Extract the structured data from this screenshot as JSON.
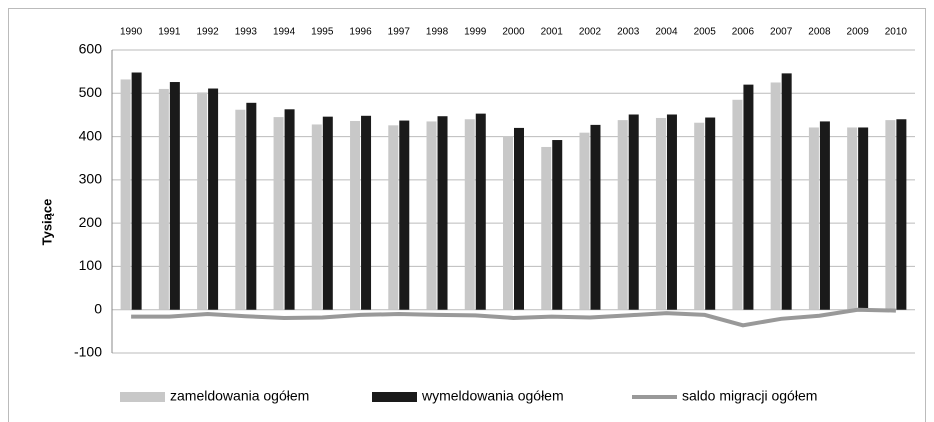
{
  "chart_data": {
    "type": "bar",
    "y_label": "Tysiące",
    "categories": [
      "1990",
      "1991",
      "1992",
      "1993",
      "1994",
      "1995",
      "1996",
      "1997",
      "1998",
      "1999",
      "2000",
      "2001",
      "2002",
      "2003",
      "2004",
      "2005",
      "2006",
      "2007",
      "2008",
      "2009",
      "2010"
    ],
    "series": [
      {
        "name": "zameldowania ogółem",
        "color": "#c8c8c8",
        "values": [
          532,
          510,
          502,
          462,
          445,
          428,
          436,
          426,
          435,
          440,
          401,
          376,
          409,
          438,
          443,
          432,
          485,
          525,
          421,
          421,
          438
        ]
      },
      {
        "name": "wymeldowania ogółem",
        "color": "#1a1a1a",
        "values": [
          548,
          526,
          511,
          478,
          463,
          446,
          448,
          437,
          447,
          453,
          420,
          392,
          427,
          451,
          451,
          444,
          520,
          546,
          435,
          421,
          440
        ]
      },
      {
        "name": "saldo migracji ogółem",
        "type": "line",
        "color": "#999999",
        "values": [
          -16,
          -16,
          -10,
          -15,
          -19,
          -18,
          -12,
          -10,
          -12,
          -13,
          -19,
          -16,
          -18,
          -13,
          -8,
          -12,
          -36,
          -21,
          -14,
          0,
          -2
        ]
      }
    ],
    "ylim": [
      -100,
      600
    ],
    "yticks": [
      -100,
      0,
      100,
      200,
      300,
      400,
      500,
      600
    ],
    "grid": true,
    "legend": "bottom"
  }
}
